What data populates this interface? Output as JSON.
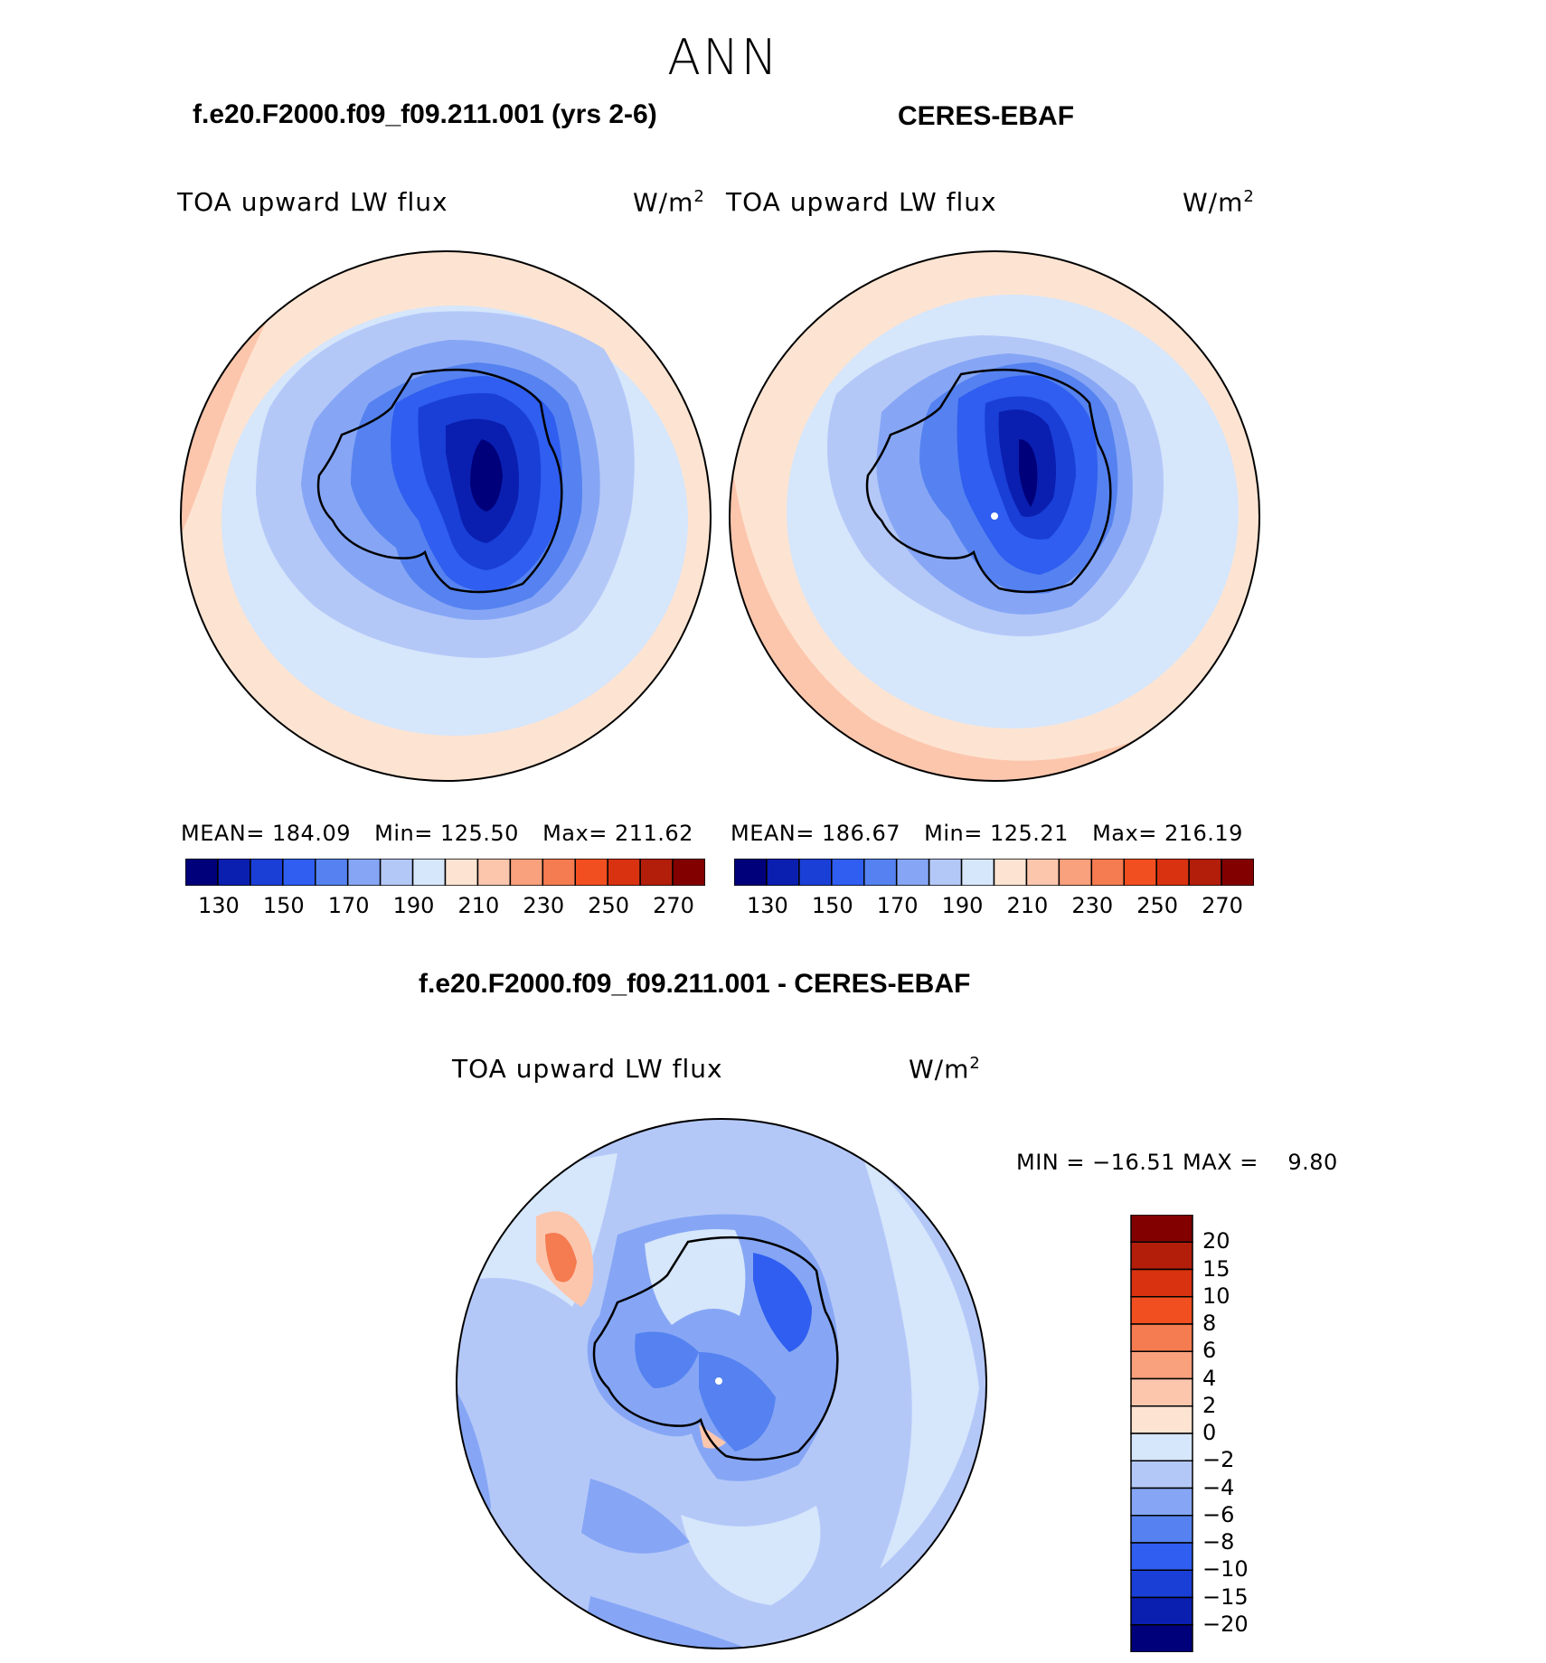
{
  "header": {
    "season": "ANN",
    "model_case": "f.e20.F2000.f09_f09.211.001 (yrs 2-6)",
    "obs_name": "CERES-EBAF",
    "diff_title": "f.e20.F2000.f09_f09.211.001 - CERES-EBAF"
  },
  "panels": [
    {
      "variable": "TOA upward LW flux",
      "unit_base": "W/m",
      "unit_exp": "2",
      "mean_label": "MEAN=",
      "mean_value": "184.09",
      "min_label": "Min=",
      "min_value": "125.50",
      "max_label": "Max=",
      "max_value": "211.62"
    },
    {
      "variable": "TOA upward LW flux",
      "unit_base": "W/m",
      "unit_exp": "2",
      "mean_label": "MEAN=",
      "mean_value": "186.67",
      "min_label": "Min=",
      "min_value": "125.21",
      "max_label": "Max=",
      "max_value": "216.19"
    }
  ],
  "diff_panel": {
    "variable": "TOA upward LW flux",
    "unit_base": "W/m",
    "unit_exp": "2",
    "minmax": "MIN = −16.51 MAX =    9.80"
  },
  "field_colorbar": {
    "ticks": [
      "130",
      "150",
      "170",
      "190",
      "210",
      "230",
      "250",
      "270"
    ],
    "colors": [
      "#00007a",
      "#0a1fb0",
      "#1a3fd6",
      "#2f5ef0",
      "#5582f0",
      "#86a6f5",
      "#b4c8f8",
      "#d6e6fb",
      "#fde4d2",
      "#fcc6ad",
      "#f9a07c",
      "#f57b50",
      "#f24f20",
      "#d93210",
      "#b31e0b",
      "#820000"
    ]
  },
  "diff_colorbar": {
    "labels": [
      "20",
      "15",
      "10",
      "8",
      "6",
      "4",
      "2",
      "0",
      "−2",
      "−4",
      "−6",
      "−8",
      "−10",
      "−15",
      "−20"
    ],
    "colors": [
      "#820000",
      "#b31e0b",
      "#d93210",
      "#f24f20",
      "#f57b50",
      "#f9a07c",
      "#fcc6ad",
      "#fde4d2",
      "#d6e6fb",
      "#b4c8f8",
      "#86a6f5",
      "#5582f0",
      "#2f5ef0",
      "#1a3fd6",
      "#0a1fb0",
      "#00007a"
    ]
  }
}
